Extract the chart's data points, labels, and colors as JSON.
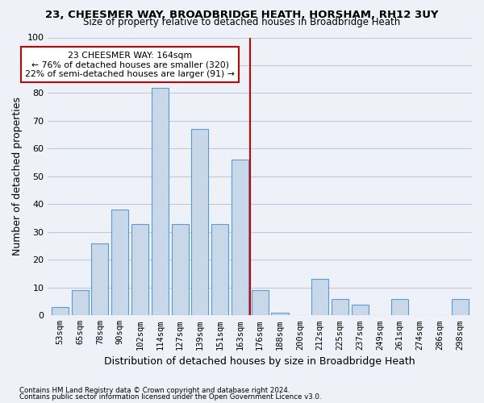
{
  "title1": "23, CHEESMER WAY, BROADBRIDGE HEATH, HORSHAM, RH12 3UY",
  "title2": "Size of property relative to detached houses in Broadbridge Heath",
  "xlabel": "Distribution of detached houses by size in Broadbridge Heath",
  "ylabel": "Number of detached properties",
  "footnote1": "Contains HM Land Registry data © Crown copyright and database right 2024.",
  "footnote2": "Contains public sector information licensed under the Open Government Licence v3.0.",
  "bin_labels": [
    "53sqm",
    "65sqm",
    "78sqm",
    "90sqm",
    "102sqm",
    "114sqm",
    "127sqm",
    "139sqm",
    "151sqm",
    "163sqm",
    "176sqm",
    "188sqm",
    "200sqm",
    "212sqm",
    "225sqm",
    "237sqm",
    "249sqm",
    "261sqm",
    "274sqm",
    "286sqm",
    "298sqm"
  ],
  "bar_heights": [
    3,
    9,
    26,
    38,
    33,
    82,
    33,
    67,
    33,
    56,
    9,
    1,
    0,
    13,
    6,
    4,
    0,
    6,
    0,
    0,
    6
  ],
  "bar_color": "#c8d8e8",
  "bar_edge_color": "#5b9bd5",
  "vline_x": 9.5,
  "vline_color": "#cc0000",
  "annotation_text": "23 CHEESMER WAY: 164sqm\n← 76% of detached houses are smaller (320)\n22% of semi-detached houses are larger (91) →",
  "annotation_box_color": "#ffffff",
  "annotation_box_edge": "#cc0000",
  "ylim": [
    0,
    100
  ],
  "yticks": [
    0,
    10,
    20,
    30,
    40,
    50,
    60,
    70,
    80,
    90,
    100
  ],
  "grid_color": "#c0c8d8",
  "background_color": "#eef2f8"
}
